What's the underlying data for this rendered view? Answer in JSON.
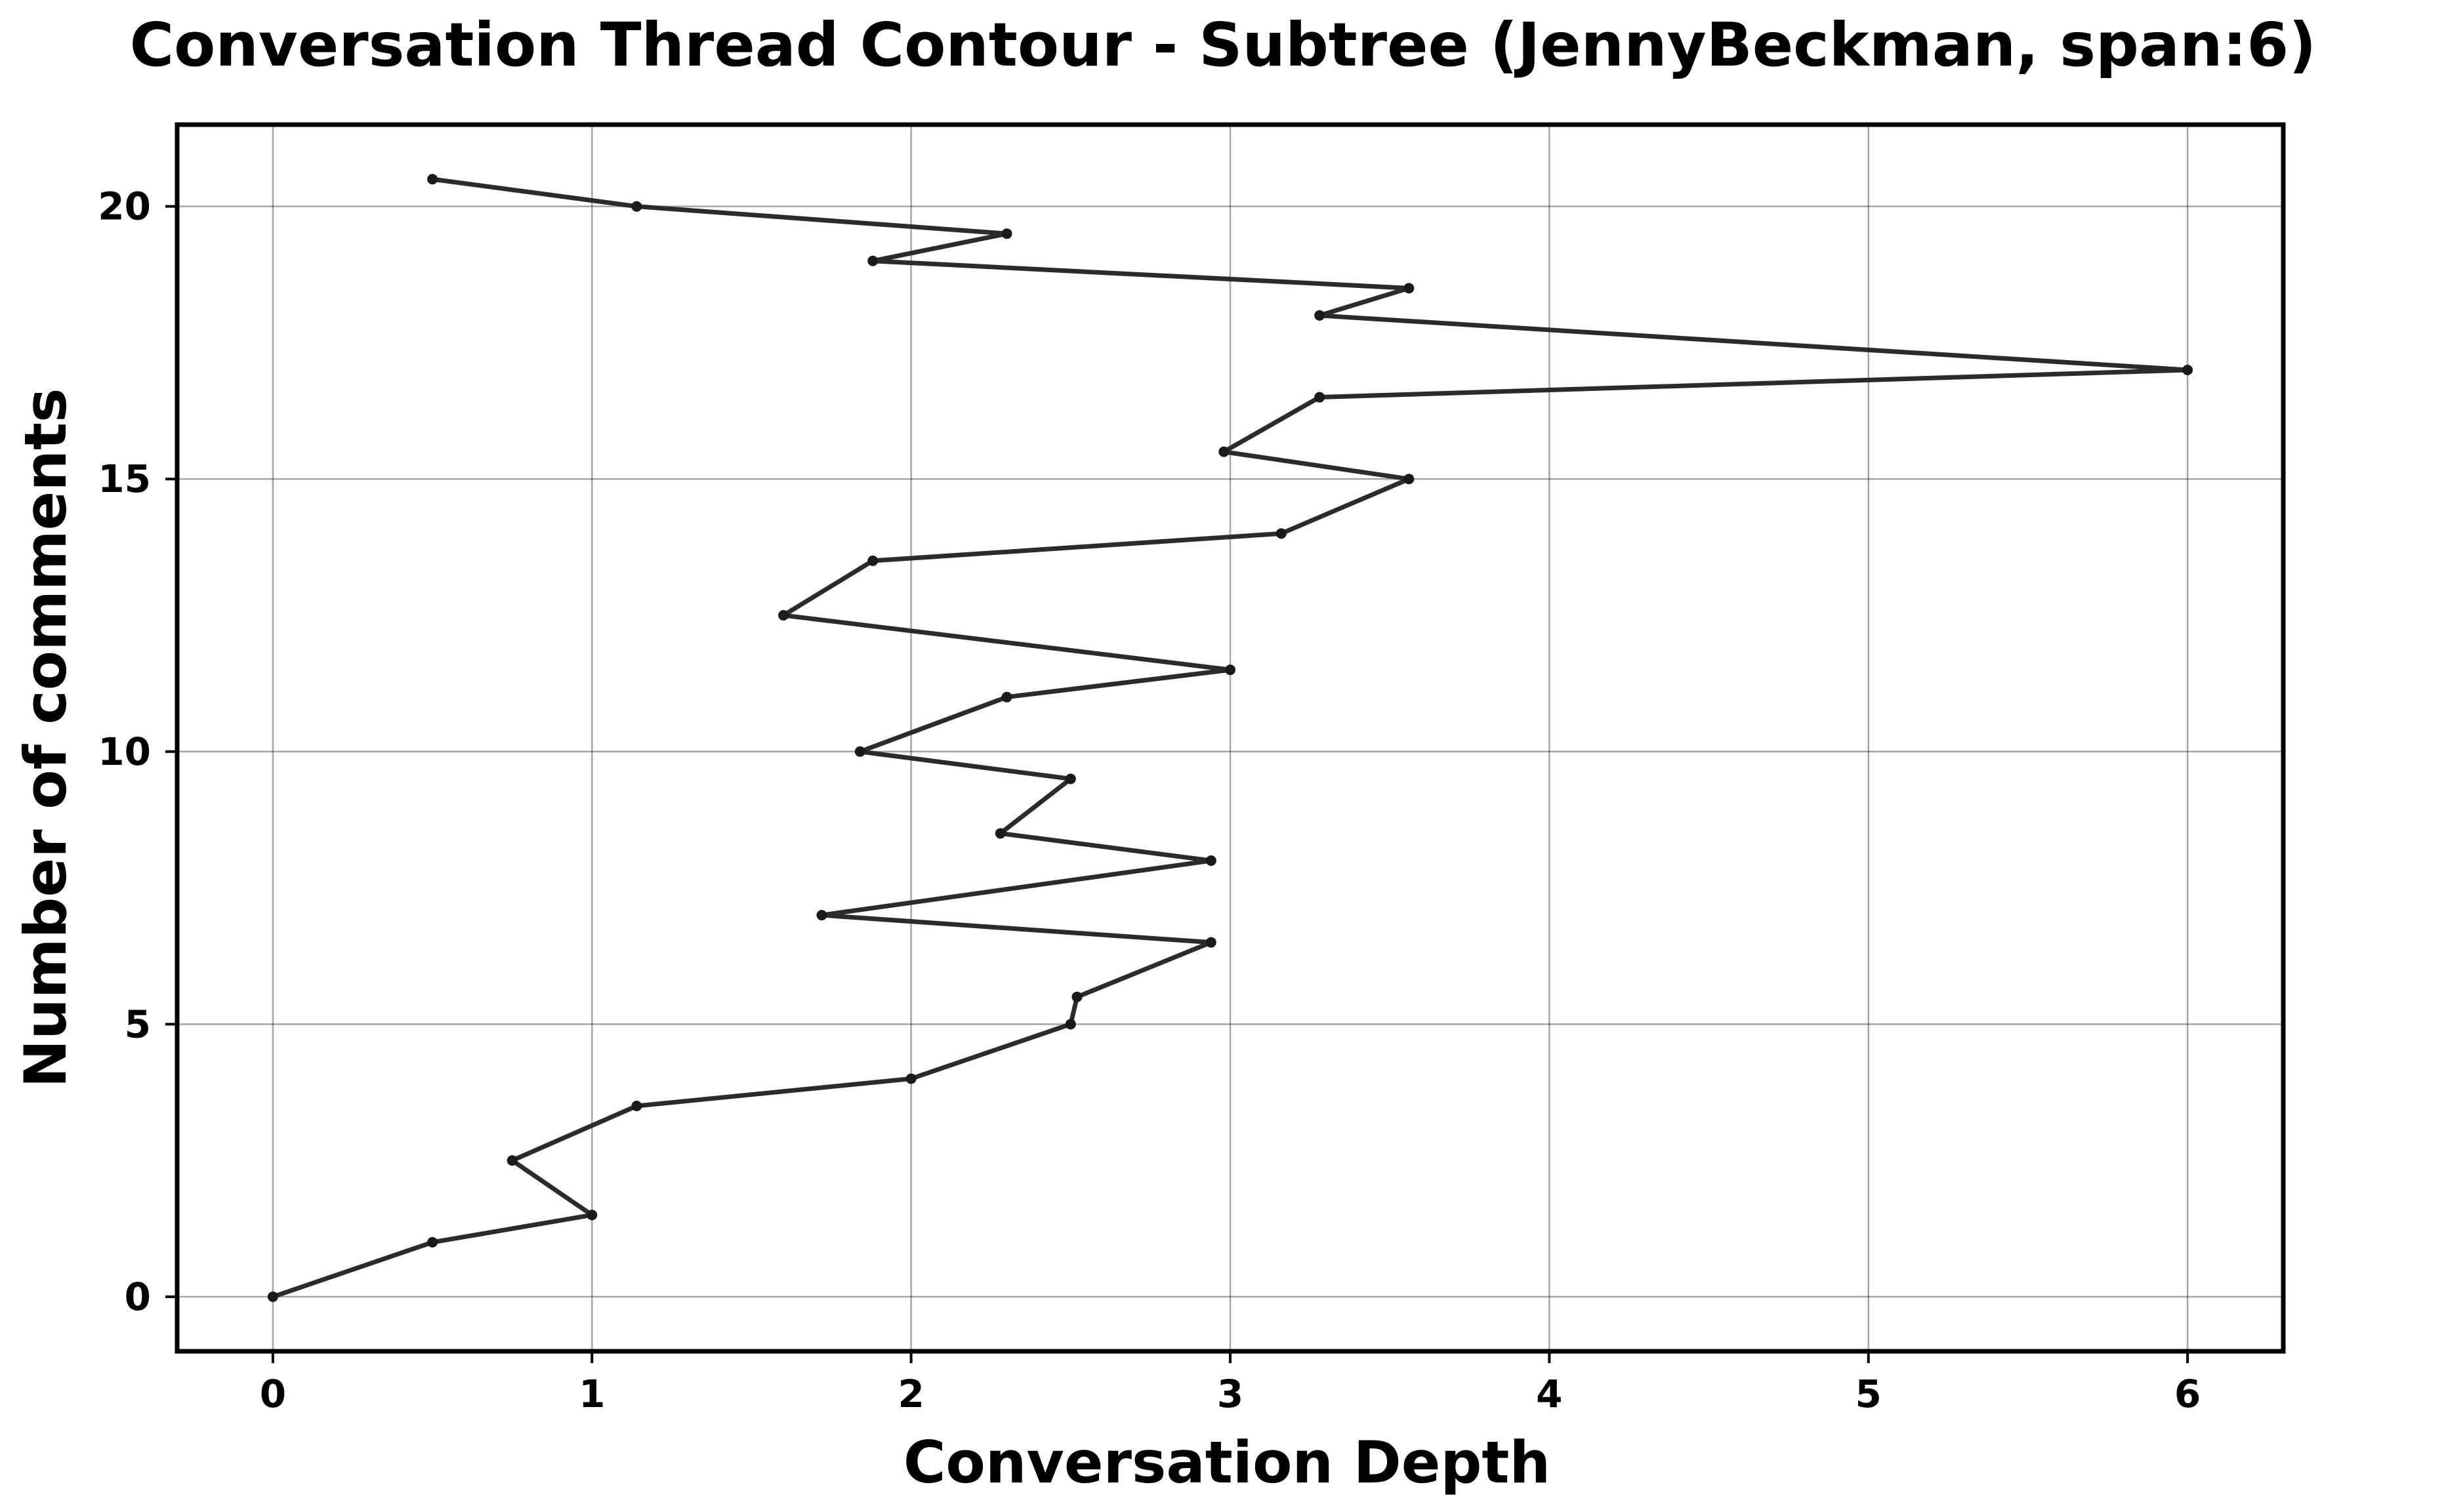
{
  "chart_data": {
    "type": "line",
    "title": "Conversation Thread Contour  - Subtree (JennyBeckman, span:6)",
    "xlabel": "Conversation Depth",
    "ylabel": "Number of comments",
    "xlim": [
      -0.3,
      6.3
    ],
    "ylim": [
      -1,
      21.5
    ],
    "xticks": [
      0,
      1,
      2,
      3,
      4,
      5,
      6
    ],
    "yticks": [
      0,
      5,
      10,
      15,
      20
    ],
    "grid": true,
    "legend": "none",
    "line_color": "#2b2b2b",
    "series": [
      {
        "points": [
          {
            "x": 0,
            "y": 0
          },
          {
            "x": 0.5,
            "y": 1
          },
          {
            "x": 1.0,
            "y": 1.5
          },
          {
            "x": 0.75,
            "y": 2.5
          },
          {
            "x": 1.14,
            "y": 3.5
          },
          {
            "x": 2.0,
            "y": 4
          },
          {
            "x": 2.5,
            "y": 5
          },
          {
            "x": 2.52,
            "y": 5.5
          },
          {
            "x": 2.94,
            "y": 6.5
          },
          {
            "x": 1.72,
            "y": 7
          },
          {
            "x": 2.94,
            "y": 8
          },
          {
            "x": 2.28,
            "y": 8.5
          },
          {
            "x": 2.5,
            "y": 9.5
          },
          {
            "x": 1.84,
            "y": 10
          },
          {
            "x": 2.3,
            "y": 11
          },
          {
            "x": 3.0,
            "y": 11.5
          },
          {
            "x": 1.6,
            "y": 12.5
          },
          {
            "x": 1.88,
            "y": 13.5
          },
          {
            "x": 3.16,
            "y": 14
          },
          {
            "x": 3.56,
            "y": 15
          },
          {
            "x": 2.98,
            "y": 15.5
          },
          {
            "x": 3.28,
            "y": 16.5
          },
          {
            "x": 6.0,
            "y": 17
          },
          {
            "x": 3.28,
            "y": 18
          },
          {
            "x": 3.56,
            "y": 18.5
          },
          {
            "x": 1.88,
            "y": 19
          },
          {
            "x": 2.3,
            "y": 19.5
          },
          {
            "x": 1.14,
            "y": 20
          },
          {
            "x": 0.5,
            "y": 20.5
          }
        ]
      }
    ]
  }
}
